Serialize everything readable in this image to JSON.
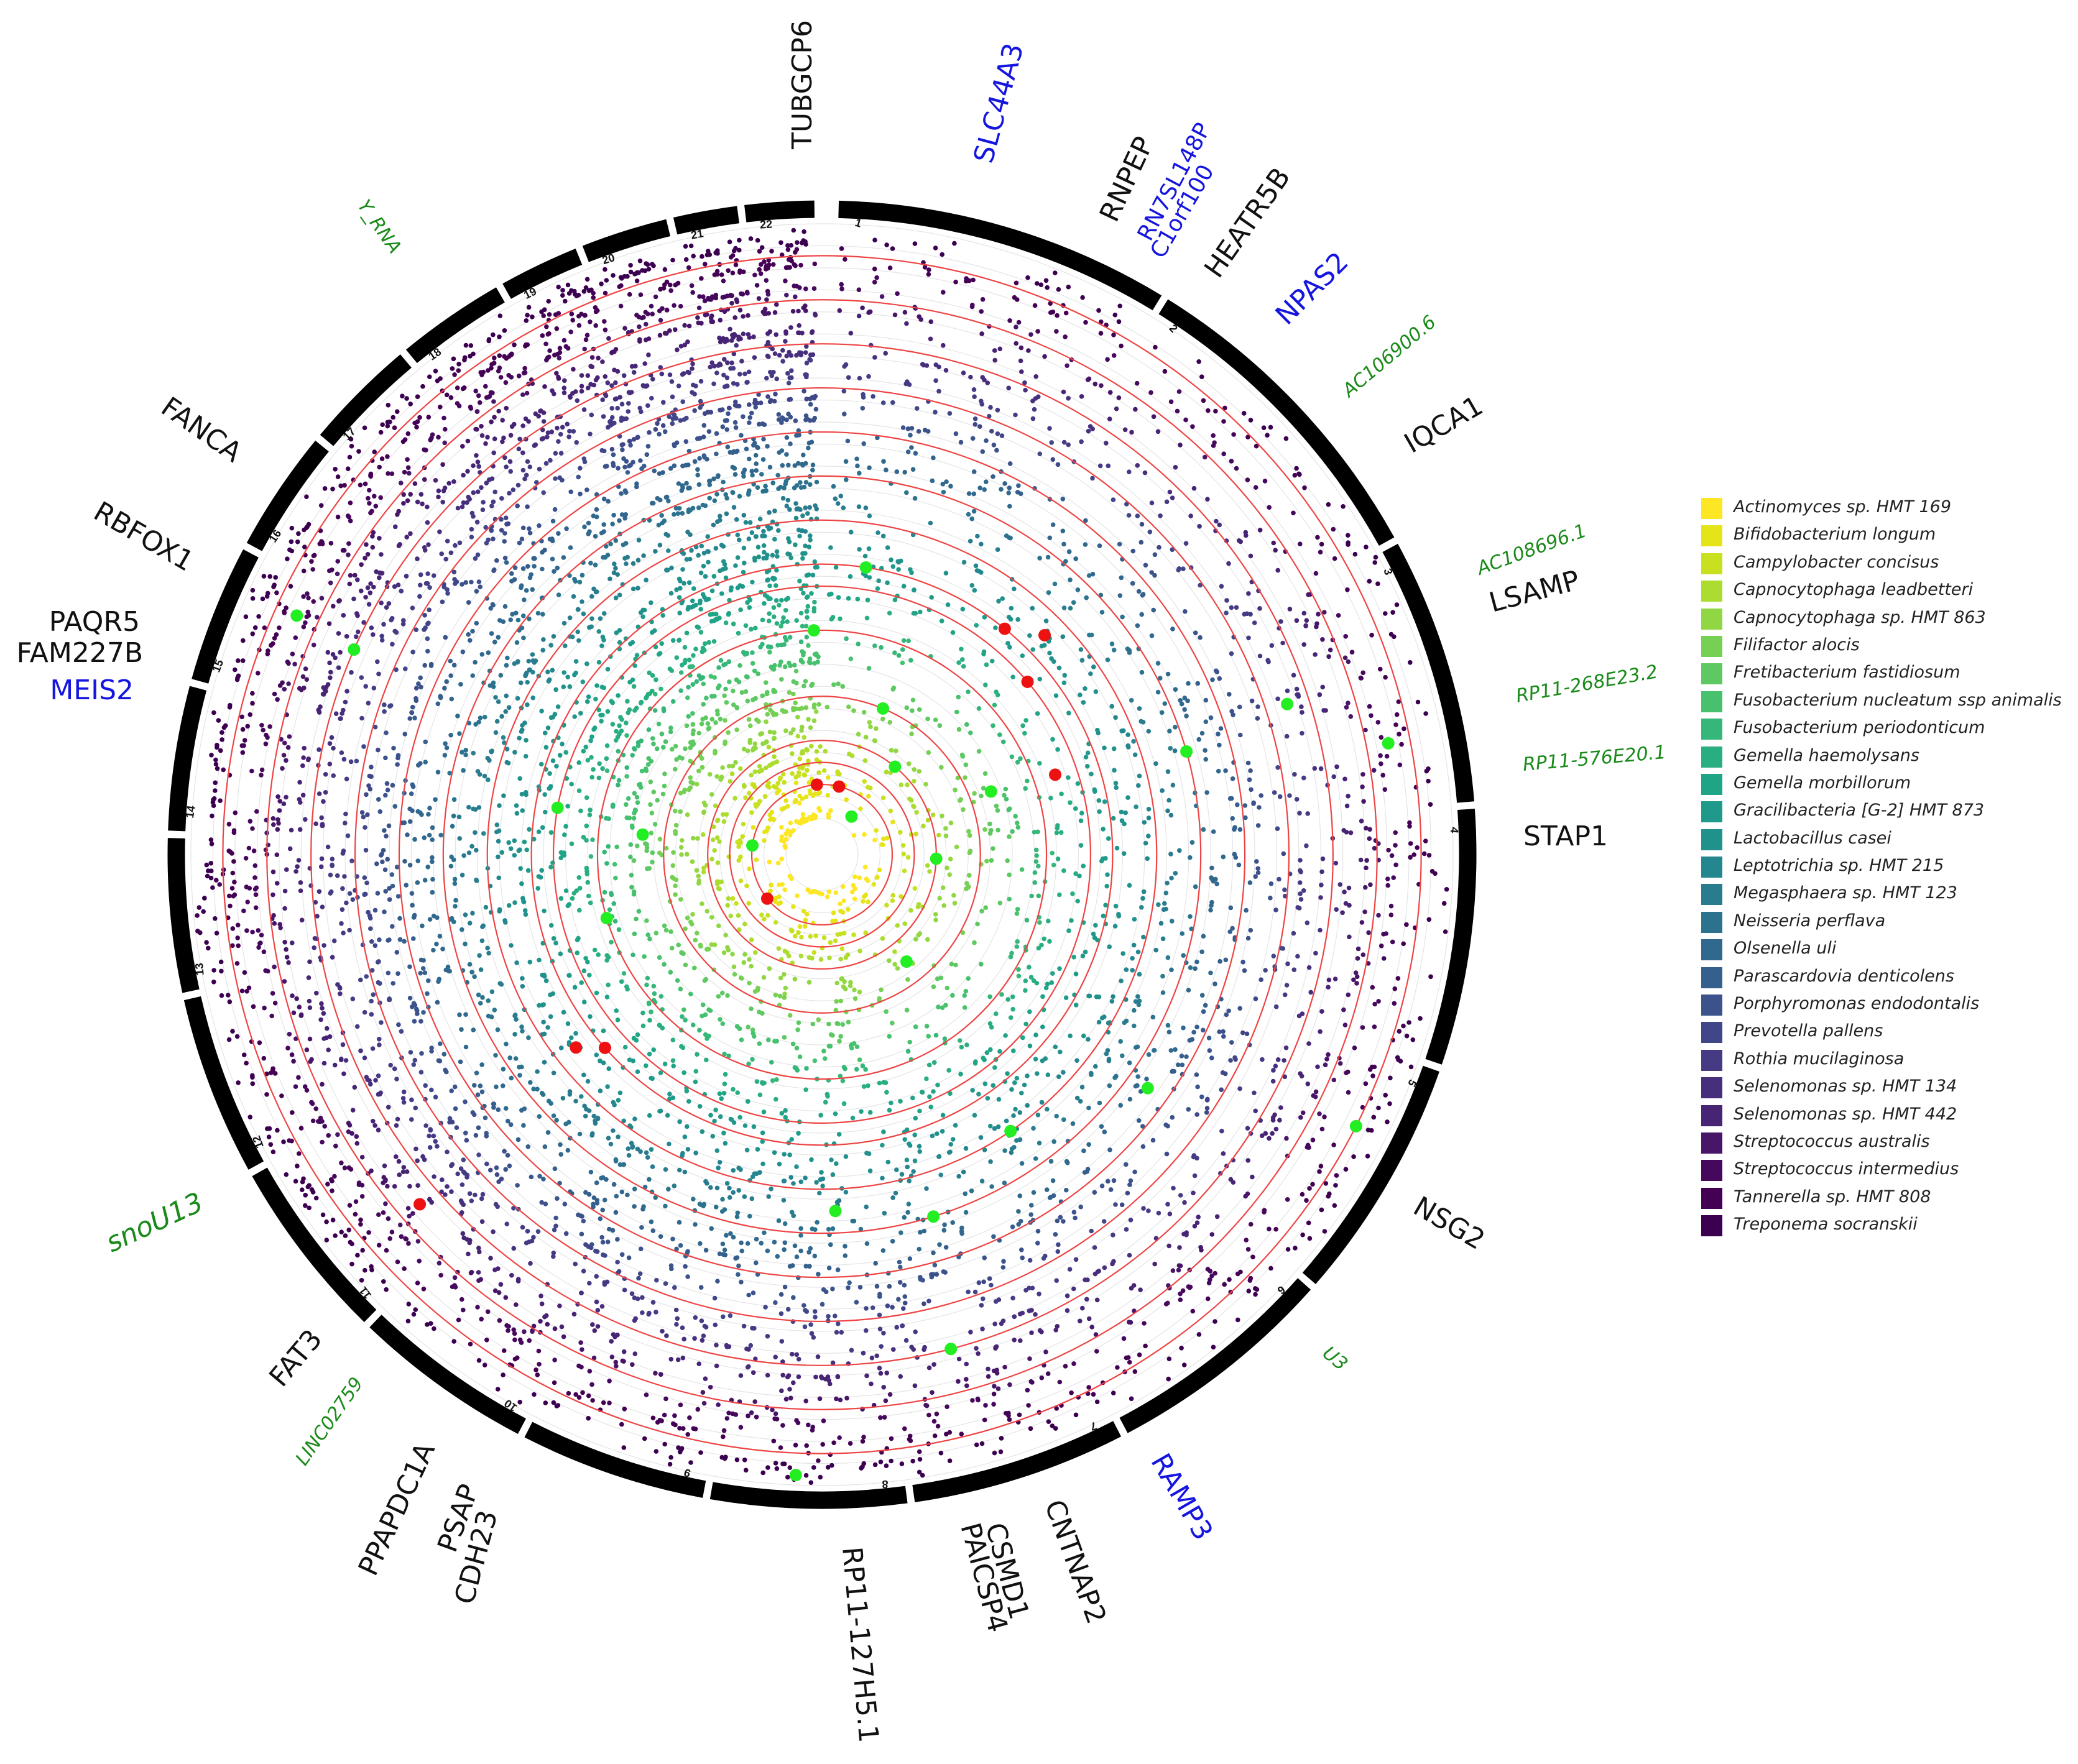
{
  "chart_data": {
    "type": "scatter",
    "title": "",
    "xlabel": "",
    "ylabel": "",
    "chromosomes": [
      "1",
      "2",
      "3",
      "4",
      "5",
      "6",
      "7",
      "8",
      "9",
      "10",
      "11",
      "12",
      "13",
      "14",
      "15",
      "16",
      "17",
      "18",
      "19",
      "20",
      "21",
      "22"
    ],
    "chromosome_sizes_mb": [
      249,
      243,
      198,
      190,
      181,
      171,
      159,
      145,
      138,
      134,
      135,
      133,
      114,
      107,
      102,
      90,
      83,
      80,
      59,
      64,
      47,
      51
    ],
    "significance_lines": "red circles per track",
    "highlight_colors": {
      "hit_red": "#ee1111",
      "hit_green": "#22ee22"
    },
    "series": [
      {
        "name": "Actinomyces sp. HMT 169",
        "color": "#fde725"
      },
      {
        "name": "Bifidobacterium longum",
        "color": "#e5e419"
      },
      {
        "name": "Campylobacter concisus",
        "color": "#c8e020"
      },
      {
        "name": "Capnocytophaga leadbetteri",
        "color": "#addc30"
      },
      {
        "name": "Capnocytophaga sp. HMT 863",
        "color": "#90d743"
      },
      {
        "name": "Filifactor alocis",
        "color": "#75d054"
      },
      {
        "name": "Fretibacterium fastidiosum",
        "color": "#5ec962"
      },
      {
        "name": "Fusobacterium nucleatum ssp animalis",
        "color": "#48c16e"
      },
      {
        "name": "Fusobacterium periodonticum",
        "color": "#35b779"
      },
      {
        "name": "Gemella haemolysans",
        "color": "#28ae80"
      },
      {
        "name": "Gemella morbillorum",
        "color": "#20a486"
      },
      {
        "name": "Gracilibacteria [G-2] HMT 873",
        "color": "#1f9a8a"
      },
      {
        "name": "Lactobacillus casei",
        "color": "#21918c"
      },
      {
        "name": "Leptotrichia sp. HMT 215",
        "color": "#24868e"
      },
      {
        "name": "Megasphaera sp. HMT 123",
        "color": "#287c8e"
      },
      {
        "name": "Neisseria perflava",
        "color": "#2c728e"
      },
      {
        "name": "Olsenella uli",
        "color": "#31688e"
      },
      {
        "name": "Parascardovia denticolens",
        "color": "#355f8d"
      },
      {
        "name": "Porphyromonas endodontalis",
        "color": "#3b528b"
      },
      {
        "name": "Prevotella pallens",
        "color": "#404688"
      },
      {
        "name": "Rothia mucilaginosa",
        "color": "#443b84"
      },
      {
        "name": "Selenomonas sp. HMT 134",
        "color": "#472f7d"
      },
      {
        "name": "Selenomonas sp. HMT 442",
        "color": "#482475"
      },
      {
        "name": "Streptococcus australis",
        "color": "#481668"
      },
      {
        "name": "Streptococcus intermedius",
        "color": "#46085c"
      },
      {
        "name": "Tannerella sp. HMT 808",
        "color": "#440154"
      },
      {
        "name": "Treponema socranskii",
        "color": "#3b0050"
      }
    ],
    "red_hits": [
      {
        "chr": "2",
        "track": 12
      },
      {
        "chr": "2",
        "track": 11
      },
      {
        "chr": "2",
        "track": 10
      },
      {
        "chr": "3",
        "track": 9
      },
      {
        "chr": "1",
        "track": 1
      },
      {
        "chr": "22",
        "track": 1
      },
      {
        "chr": "11",
        "track": 1
      },
      {
        "chr": "11",
        "track": 11
      },
      {
        "chr": "11",
        "track": 12
      },
      {
        "chr": "11",
        "track": 22
      }
    ],
    "green_hits": [
      {
        "chr": "1",
        "track": 11
      },
      {
        "chr": "22",
        "track": 8
      },
      {
        "chr": "1",
        "track": 5
      },
      {
        "chr": "2",
        "track": 3
      },
      {
        "chr": "2",
        "track": 0
      },
      {
        "chr": "3",
        "track": 6
      },
      {
        "chr": "3",
        "track": 20
      },
      {
        "chr": "3",
        "track": 24
      },
      {
        "chr": "3",
        "track": 15
      },
      {
        "chr": "4",
        "track": 3
      },
      {
        "chr": "14",
        "track": 1
      },
      {
        "chr": "14",
        "track": 6
      },
      {
        "chr": "14",
        "track": 10
      },
      {
        "chr": "15",
        "track": 24
      },
      {
        "chr": "15",
        "track": 21
      },
      {
        "chr": "12",
        "track": 8
      },
      {
        "chr": "6",
        "track": 4
      },
      {
        "chr": "5",
        "track": 16
      },
      {
        "chr": "5",
        "track": 25
      },
      {
        "chr": "6",
        "track": 13
      },
      {
        "chr": "7",
        "track": 15
      },
      {
        "chr": "8",
        "track": 14
      },
      {
        "chr": "7",
        "track": 21
      },
      {
        "chr": "8",
        "track": 26
      }
    ],
    "gene_labels": [
      {
        "text": "TUBGCP6",
        "color": "#111111"
      },
      {
        "text": "SLC44A3",
        "color": "#1515e0"
      },
      {
        "text": "RNPEP",
        "color": "#111111"
      },
      {
        "text": "RN7SL148P",
        "color": "#1515e0"
      },
      {
        "text": "C1orf100",
        "color": "#1515e0"
      },
      {
        "text": "HEATR5B",
        "color": "#111111"
      },
      {
        "text": "NPAS2",
        "color": "#1515e0"
      },
      {
        "text": "AC106900.6",
        "color": "#1a8a1a"
      },
      {
        "text": "IQCA1",
        "color": "#111111"
      },
      {
        "text": "AC108696.1",
        "color": "#1a8a1a"
      },
      {
        "text": "LSAMP",
        "color": "#111111"
      },
      {
        "text": "RP11-268E23.2",
        "color": "#1a8a1a"
      },
      {
        "text": "RP11-576E20.1",
        "color": "#1a8a1a"
      },
      {
        "text": "STAP1",
        "color": "#111111"
      },
      {
        "text": "NSG2",
        "color": "#111111"
      },
      {
        "text": "U3",
        "color": "#1a8a1a"
      },
      {
        "text": "RAMP3",
        "color": "#1515e0"
      },
      {
        "text": "CNTNAP2",
        "color": "#111111"
      },
      {
        "text": "CSMD1",
        "color": "#111111"
      },
      {
        "text": "PAICSP4",
        "color": "#111111"
      },
      {
        "text": "RP11-127H5.1",
        "color": "#111111"
      },
      {
        "text": "CDH23",
        "color": "#111111"
      },
      {
        "text": "PSAP",
        "color": "#111111"
      },
      {
        "text": "PPAPDC1A",
        "color": "#111111"
      },
      {
        "text": "LINC02759",
        "color": "#1a8a1a"
      },
      {
        "text": "FAT3",
        "color": "#111111"
      },
      {
        "text": "snoU13",
        "color": "#1a8a1a"
      },
      {
        "text": "MEIS2",
        "color": "#1515e0"
      },
      {
        "text": "FAM227B",
        "color": "#111111"
      },
      {
        "text": "PAQR5",
        "color": "#111111"
      },
      {
        "text": "RBFOX1",
        "color": "#111111"
      },
      {
        "text": "FANCA",
        "color": "#111111"
      },
      {
        "text": "Y_RNA",
        "color": "#1a8a1a"
      }
    ]
  }
}
